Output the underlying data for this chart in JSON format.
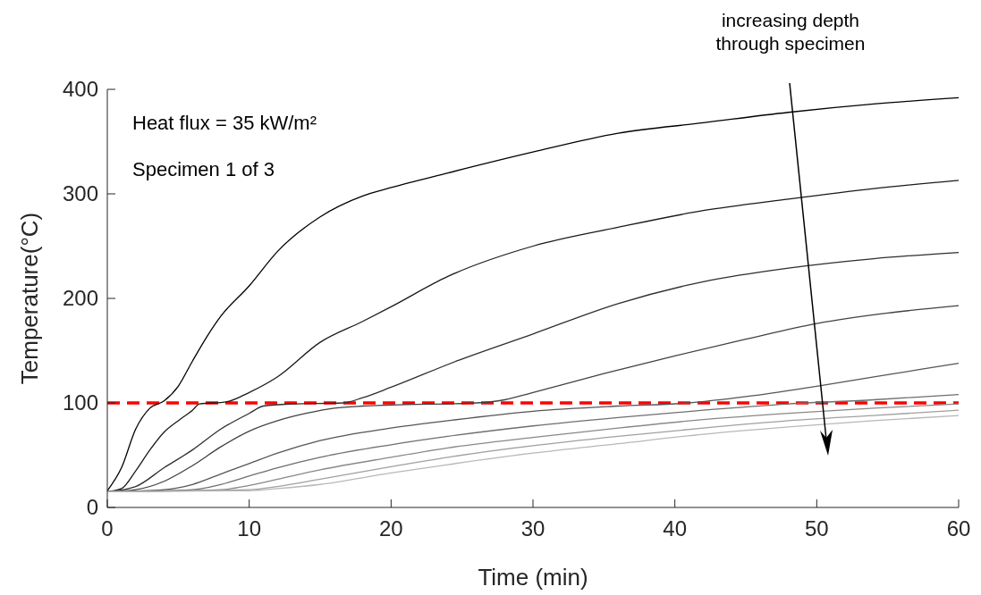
{
  "chart_data": {
    "type": "line",
    "xlabel": "Time (min)",
    "ylabel": "Temperature(°C)",
    "xlim": [
      0,
      60
    ],
    "ylim": [
      0,
      400
    ],
    "xticks": [
      0,
      10,
      20,
      30,
      40,
      50,
      60
    ],
    "yticks": [
      0,
      100,
      200,
      300,
      400
    ],
    "grid": false,
    "marker": "none",
    "line_style": "solid",
    "annotations": [
      "Heat flux = 35 kW/m²",
      "Specimen 1 of 3",
      "increasing depth\nthrough specimen"
    ],
    "ref_lines": [
      {
        "axis": "y",
        "value": 100,
        "color": "#ff0000",
        "line_style": "dashed"
      }
    ],
    "series": [
      {
        "color": "#000000",
        "x": [
          0,
          1,
          2,
          3,
          4,
          5,
          6,
          7,
          8,
          10,
          12,
          15,
          18,
          20,
          24,
          30,
          36,
          42,
          48,
          54,
          60
        ],
        "values": [
          16,
          38,
          75,
          95,
          102,
          116,
          140,
          163,
          183,
          212,
          245,
          278,
          298,
          306,
          320,
          340,
          358,
          368,
          378,
          386,
          392
        ]
      },
      {
        "color": "#1a1a1a",
        "x": [
          0,
          1,
          2,
          3,
          4,
          5,
          6,
          6.5,
          8.4,
          10,
          12,
          15,
          18,
          20,
          24,
          30,
          36,
          42,
          48,
          54,
          60
        ],
        "values": [
          15,
          18,
          35,
          55,
          72,
          83,
          93,
          99,
          101,
          110,
          125,
          158,
          178,
          192,
          221,
          250,
          268,
          284,
          295,
          305,
          313
        ]
      },
      {
        "color": "#2e2e2e",
        "x": [
          0,
          2,
          4,
          6,
          8,
          10,
          11,
          13,
          16.6,
          18,
          20,
          24.6,
          30,
          36,
          42,
          48,
          54,
          60
        ],
        "values": [
          15,
          20,
          38,
          55,
          75,
          90,
          97,
          99,
          100,
          105,
          115,
          140,
          166,
          195,
          216,
          229,
          238,
          244
        ]
      },
      {
        "color": "#424242",
        "x": [
          0,
          2,
          4,
          6,
          8,
          10,
          12,
          14,
          16,
          18,
          20,
          26,
          28,
          30,
          35,
          40,
          45,
          50,
          55,
          60
        ],
        "values": [
          15,
          17,
          25,
          40,
          58,
          73,
          83,
          90,
          95,
          97,
          98,
          100,
          103,
          110,
          128,
          145,
          161,
          176,
          186,
          193
        ]
      },
      {
        "color": "#555555",
        "x": [
          0,
          4,
          6,
          8,
          10,
          12,
          15,
          20,
          24,
          30,
          36,
          41,
          45,
          50,
          55,
          60
        ],
        "values": [
          15,
          17,
          22,
          32,
          42,
          52,
          64,
          76,
          83,
          92,
          97,
          100,
          106,
          116,
          127,
          138
        ]
      },
      {
        "color": "#6e6e6e",
        "x": [
          0,
          6,
          8,
          10,
          12,
          15,
          20,
          24,
          30,
          36,
          42,
          48,
          54,
          60
        ],
        "values": [
          15,
          17,
          22,
          30,
          38,
          48,
          60,
          68,
          78,
          86,
          93,
          99,
          103,
          108
        ]
      },
      {
        "color": "#888888",
        "x": [
          0,
          8,
          10,
          12,
          15,
          20,
          24,
          30,
          36,
          42,
          48,
          54,
          60
        ],
        "values": [
          15,
          17,
          21,
          27,
          36,
          48,
          57,
          67,
          76,
          84,
          90,
          95,
          99
        ]
      },
      {
        "color": "#a0a0a0",
        "x": [
          0,
          10,
          12,
          15,
          20,
          24,
          30,
          36,
          42,
          48,
          54,
          60
        ],
        "values": [
          15,
          17,
          20,
          27,
          39,
          48,
          59,
          68,
          76,
          83,
          88,
          93
        ]
      },
      {
        "color": "#b8b8b8",
        "x": [
          0,
          10,
          12,
          15,
          20,
          24,
          30,
          36,
          42,
          48,
          54,
          60
        ],
        "values": [
          15,
          16,
          18,
          22,
          33,
          41,
          52,
          61,
          70,
          77,
          83,
          88
        ]
      }
    ]
  }
}
